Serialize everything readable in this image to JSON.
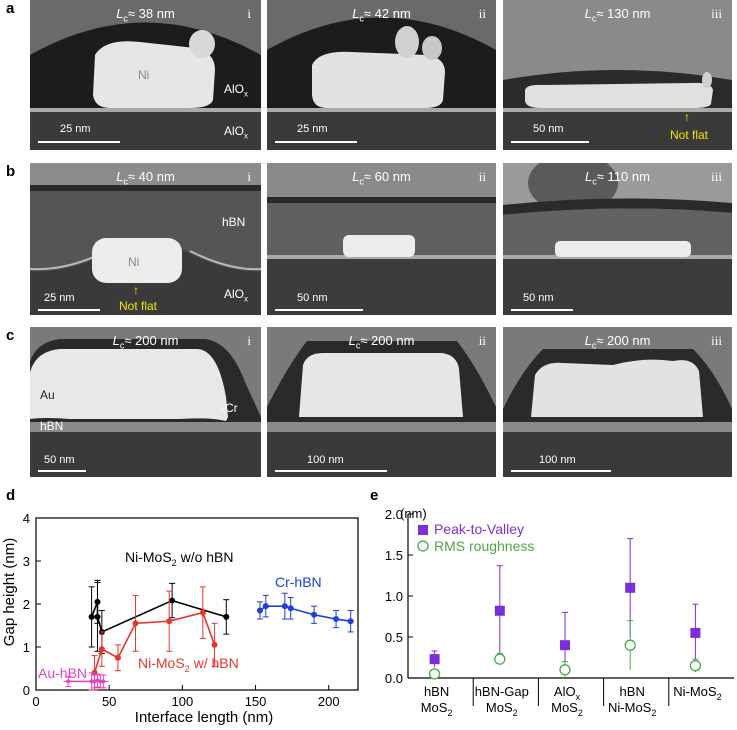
{
  "panels": {
    "a": {
      "label": "a"
    },
    "b": {
      "label": "b"
    },
    "c": {
      "label": "c"
    },
    "d": {
      "label": "d"
    },
    "e": {
      "label": "e"
    }
  },
  "tem": {
    "lc_symbol": "L",
    "lc_sub": "c",
    "a": [
      {
        "roman": "i",
        "lc": "≈ 38 nm",
        "scale": "25 nm",
        "labels": {
          "metal": "Ni",
          "top": "AlO",
          "bottom": "AlO",
          "sub": "x"
        }
      },
      {
        "roman": "ii",
        "lc": "≈ 42 nm",
        "scale": "25 nm"
      },
      {
        "roman": "iii",
        "lc": "≈ 130 nm",
        "scale": "50 nm",
        "note": "Not flat"
      }
    ],
    "b": [
      {
        "roman": "i",
        "lc": "≈ 40 nm",
        "scale": "25 nm",
        "labels": {
          "metal": "Ni",
          "top": "hBN",
          "bottom": "AlO",
          "sub": "x"
        },
        "note": "Not flat"
      },
      {
        "roman": "ii",
        "lc": "≈ 60 nm",
        "scale": "50 nm"
      },
      {
        "roman": "iii",
        "lc": "≈ 110 nm",
        "scale": "50 nm"
      }
    ],
    "c": [
      {
        "roman": "i",
        "lc": "≈ 200 nm",
        "scale": "50 nm",
        "labels": {
          "metal": "Au",
          "bottom": "hBN",
          "cr": "Cr"
        }
      },
      {
        "roman": "ii",
        "lc": "≈ 200 nm",
        "scale": "100 nm"
      },
      {
        "roman": "iii",
        "lc": "≈ 200 nm",
        "scale": "100 nm"
      }
    ]
  },
  "colors": {
    "black": "#000000",
    "red": "#e8342b",
    "blue": "#1f3fd6",
    "pink": "#e843c8",
    "purple": "#7b2fd9",
    "green": "#4aa84a",
    "yellow": "#f5e300"
  },
  "chart_data": [
    {
      "type": "line",
      "xlabel": "Interface length (nm)",
      "ylabel": "Gap height (nm)",
      "xlim": [
        0,
        220
      ],
      "ylim": [
        0,
        4
      ],
      "xticks": [
        0,
        50,
        100,
        150,
        200
      ],
      "yticks": [
        0,
        1,
        2,
        3,
        4
      ],
      "series": [
        {
          "name": "Ni-MoS",
          "name_sub": "2",
          "name_suffix": " w/o hBN",
          "color": "#000000",
          "x": [
            38,
            42,
            42,
            45,
            93,
            130
          ],
          "y": [
            1.7,
            2.05,
            1.7,
            1.35,
            2.08,
            1.7
          ],
          "err": [
            0.7,
            0.5,
            0.8,
            0.5,
            0.4,
            0.4
          ]
        },
        {
          "name": "Ni-MoS",
          "name_sub": "2",
          "name_suffix": " w/ hBN",
          "color": "#e8342b",
          "x": [
            40,
            45,
            56,
            68,
            91,
            114,
            122
          ],
          "y": [
            0.4,
            0.95,
            0.75,
            1.55,
            1.6,
            1.8,
            1.05
          ],
          "err": [
            0.4,
            0.4,
            0.3,
            0.65,
            0.7,
            0.6,
            0.5
          ]
        },
        {
          "name": "Cr-hBN",
          "color": "#1f3fd6",
          "x": [
            153,
            157,
            170,
            174,
            190,
            205,
            215
          ],
          "y": [
            1.85,
            1.95,
            1.95,
            1.9,
            1.75,
            1.65,
            1.6
          ],
          "err": [
            0.2,
            0.25,
            0.3,
            0.25,
            0.2,
            0.2,
            0.25
          ]
        },
        {
          "name": "Au-hBN",
          "color": "#e843c8",
          "x": [
            22,
            38,
            40,
            42,
            44,
            46
          ],
          "y": [
            0.2,
            0.2,
            0.2,
            0.22,
            0.2,
            0.2
          ],
          "err": [
            0.12,
            0.2,
            0.15,
            0.15,
            0.15,
            0.15
          ]
        }
      ]
    },
    {
      "type": "scatter",
      "ylabel": "(nm)",
      "ylim": [
        0,
        2.0
      ],
      "yticks": [
        "0.0",
        "0.5",
        "1.0",
        "1.5",
        "2.0"
      ],
      "categories": [
        {
          "line1": "hBN",
          "line2": "MoS",
          "sub2": "2"
        },
        {
          "line1": "hBN-Gap",
          "line2": "MoS",
          "sub2": "2"
        },
        {
          "line1": "AlO",
          "sub1": "x",
          "line2": "MoS",
          "sub2": "2"
        },
        {
          "line1": "hBN",
          "line2": "Ni-MoS",
          "sub2": "2"
        },
        {
          "line1": "Ni-MoS",
          "sub1": "2",
          "line2": ""
        }
      ],
      "series": [
        {
          "name": "Peak-to-Valley",
          "color": "#7b2fd9",
          "marker": "square",
          "values": [
            0.23,
            0.82,
            0.4,
            1.1,
            0.55
          ],
          "err": [
            0.1,
            0.55,
            0.4,
            0.6,
            0.35
          ]
        },
        {
          "name": "RMS roughness",
          "color": "#4aa84a",
          "marker": "circle",
          "values": [
            0.05,
            0.23,
            0.1,
            0.4,
            0.15
          ],
          "err": [
            0.05,
            0.07,
            0.1,
            0.3,
            0.08
          ]
        }
      ]
    }
  ]
}
